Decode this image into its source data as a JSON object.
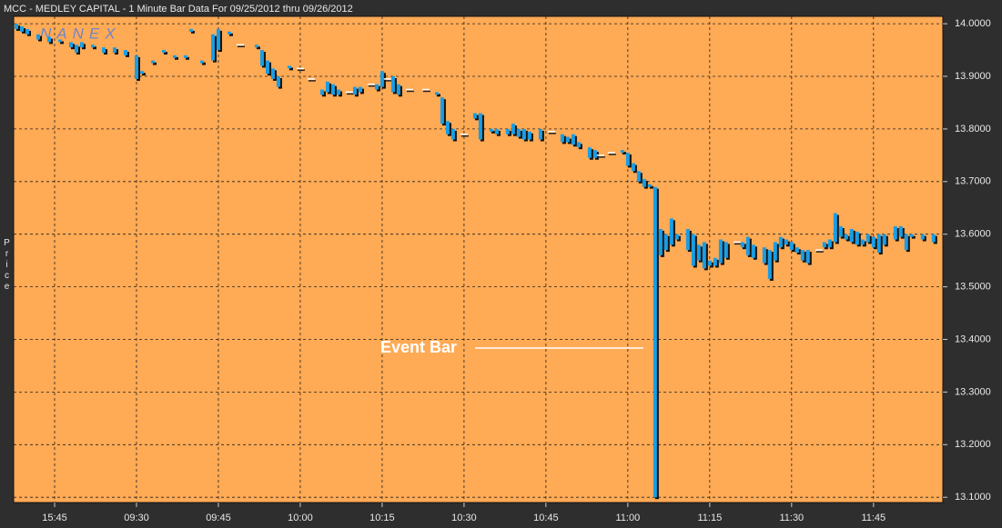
{
  "chart_data": {
    "type": "bar-range",
    "title": "MCC - MEDLEY CAPITAL - 1 Minute Bar Data For 09/25/2012  thru  09/26/2012",
    "y_label": "Price",
    "watermark": "NANEX",
    "annotation": "Event Bar",
    "color": "#1a9de4",
    "grid": true,
    "xlim": [
      -7.5,
      162.7
    ],
    "ylim": [
      13.09,
      14.014
    ],
    "xticks": [
      {
        "value": 0,
        "label": "15:45"
      },
      {
        "value": 15,
        "label": "09:30"
      },
      {
        "value": 30,
        "label": "09:45"
      },
      {
        "value": 45,
        "label": "10:00"
      },
      {
        "value": 60,
        "label": "10:15"
      },
      {
        "value": 75,
        "label": "10:30"
      },
      {
        "value": 90,
        "label": "10:45"
      },
      {
        "value": 105,
        "label": "11:00"
      },
      {
        "value": 120,
        "label": "11:15"
      },
      {
        "value": 135,
        "label": "11:30"
      },
      {
        "value": 150,
        "label": "11:45"
      }
    ],
    "yticks": [
      {
        "value": 14.0,
        "label": "14.0000"
      },
      {
        "value": 13.9,
        "label": "13.9000"
      },
      {
        "value": 13.8,
        "label": "13.8000"
      },
      {
        "value": 13.7,
        "label": "13.7000"
      },
      {
        "value": 13.6,
        "label": "13.6000"
      },
      {
        "value": 13.5,
        "label": "13.5000"
      },
      {
        "value": 13.4,
        "label": "13.4000"
      },
      {
        "value": 13.3,
        "label": "13.3000"
      },
      {
        "value": 13.2,
        "label": "13.2000"
      },
      {
        "value": 13.1,
        "label": "13.1000"
      }
    ],
    "x": [
      -7,
      -6,
      -5,
      -3,
      -1,
      1,
      3,
      4,
      5,
      7,
      9,
      11,
      13,
      15,
      16,
      18,
      20,
      22,
      24,
      25,
      27,
      29,
      30,
      32,
      34,
      37,
      38,
      39,
      40,
      41,
      43,
      45,
      47,
      49,
      50,
      51,
      52,
      54,
      55,
      56,
      58,
      59,
      60,
      61,
      62,
      63,
      65,
      68,
      70,
      71,
      72,
      73,
      75,
      77,
      78,
      80,
      81,
      83,
      84,
      85,
      86,
      87,
      89,
      91,
      93,
      94,
      95,
      96,
      98,
      99,
      100,
      102,
      104,
      105,
      106,
      107,
      108,
      109,
      110,
      111,
      112,
      113,
      114,
      116,
      117,
      118,
      119,
      120,
      121,
      122,
      123,
      125,
      126,
      127,
      128,
      130,
      131,
      132,
      133,
      134,
      135,
      136,
      137,
      138,
      140,
      141,
      142,
      143,
      144,
      145,
      146,
      147,
      148,
      149,
      150,
      151,
      152,
      154,
      155,
      156,
      157,
      159,
      161
    ],
    "high": [
      14.0,
      13.995,
      13.99,
      13.98,
      13.975,
      13.97,
      13.965,
      13.96,
      13.965,
      13.96,
      13.955,
      13.955,
      13.95,
      13.94,
      13.91,
      13.93,
      13.95,
      13.94,
      13.94,
      13.99,
      13.93,
      13.98,
      13.99,
      13.985,
      13.96,
      13.96,
      13.95,
      13.93,
      13.915,
      13.9,
      13.92,
      13.915,
      13.895,
      13.875,
      13.89,
      13.885,
      13.875,
      13.87,
      13.88,
      13.88,
      13.885,
      13.885,
      13.91,
      13.895,
      13.9,
      13.885,
      13.875,
      13.875,
      13.87,
      13.86,
      13.815,
      13.8,
      13.79,
      13.83,
      13.83,
      13.8,
      13.8,
      13.8,
      13.81,
      13.8,
      13.8,
      13.795,
      13.8,
      13.795,
      13.79,
      13.785,
      13.79,
      13.775,
      13.765,
      13.76,
      13.75,
      13.755,
      13.76,
      13.755,
      13.735,
      13.72,
      13.705,
      13.695,
      13.69,
      13.61,
      13.6,
      13.63,
      13.6,
      13.61,
      13.6,
      13.58,
      13.585,
      13.55,
      13.555,
      13.59,
      13.585,
      13.585,
      13.585,
      13.595,
      13.58,
      13.575,
      13.57,
      13.585,
      13.595,
      13.59,
      13.585,
      13.575,
      13.57,
      13.57,
      13.57,
      13.585,
      13.59,
      13.64,
      13.615,
      13.6,
      13.61,
      13.605,
      13.59,
      13.6,
      13.595,
      13.6,
      13.6,
      13.615,
      13.615,
      13.6,
      13.6,
      13.6,
      13.6
    ],
    "low": [
      13.99,
      13.985,
      13.98,
      13.97,
      13.965,
      13.965,
      13.955,
      13.945,
      13.955,
      13.955,
      13.945,
      13.945,
      13.94,
      13.895,
      13.905,
      13.925,
      13.945,
      13.935,
      13.935,
      13.985,
      13.925,
      13.93,
      13.95,
      13.98,
      13.96,
      13.955,
      13.92,
      13.905,
      13.895,
      13.88,
      13.915,
      13.915,
      13.895,
      13.865,
      13.87,
      13.865,
      13.865,
      13.87,
      13.865,
      13.87,
      13.885,
      13.875,
      13.88,
      13.895,
      13.87,
      13.865,
      13.875,
      13.875,
      13.865,
      13.81,
      13.79,
      13.78,
      13.79,
      13.82,
      13.78,
      13.795,
      13.79,
      13.79,
      13.79,
      13.785,
      13.78,
      13.78,
      13.78,
      13.795,
      13.775,
      13.775,
      13.77,
      13.765,
      13.745,
      13.745,
      13.75,
      13.755,
      13.755,
      13.73,
      13.72,
      13.7,
      13.69,
      13.69,
      13.1,
      13.56,
      13.57,
      13.58,
      13.59,
      13.57,
      13.54,
      13.55,
      13.535,
      13.54,
      13.54,
      13.545,
      13.555,
      13.585,
      13.575,
      13.56,
      13.555,
      13.545,
      13.515,
      13.55,
      13.575,
      13.58,
      13.57,
      13.565,
      13.55,
      13.545,
      13.57,
      13.575,
      13.575,
      13.585,
      13.595,
      13.59,
      13.585,
      13.58,
      13.58,
      13.585,
      13.575,
      13.565,
      13.58,
      13.59,
      13.595,
      13.57,
      13.595,
      13.59,
      13.585
    ]
  }
}
